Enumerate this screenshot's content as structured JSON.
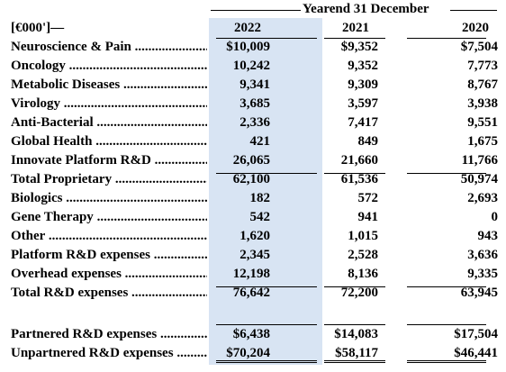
{
  "unit_label": "[€000']—",
  "group_header": "Yearend 31 December",
  "years": [
    "2022",
    "2021",
    "2020"
  ],
  "rows": [
    {
      "label": "Neuroscience & Pain",
      "v2022": "$10,009",
      "v2021": "$9,352",
      "v2020": "$7,504"
    },
    {
      "label": "Oncology",
      "v2022": "10,242",
      "v2021": "9,352",
      "v2020": "7,773"
    },
    {
      "label": "Metabolic Diseases",
      "v2022": "9,341",
      "v2021": "9,309",
      "v2020": "8,767"
    },
    {
      "label": "Virology",
      "v2022": "3,685",
      "v2021": "3,597",
      "v2020": "3,938"
    },
    {
      "label": "Anti-Bacterial",
      "v2022": "2,336",
      "v2021": "7,417",
      "v2020": "9,551"
    },
    {
      "label": "Global Health",
      "v2022": "421",
      "v2021": "849",
      "v2020": "1,675"
    },
    {
      "label": "Innovate Platform R&D",
      "v2022": "26,065",
      "v2021": "21,660",
      "v2020": "11,766"
    },
    {
      "label": "Total Proprietary",
      "v2022": "62,100",
      "v2021": "61,536",
      "v2020": "50,974"
    },
    {
      "label": "Biologics",
      "v2022": "182",
      "v2021": "572",
      "v2020": "2,693"
    },
    {
      "label": "Gene Therapy",
      "v2022": "542",
      "v2021": "941",
      "v2020": "0"
    },
    {
      "label": "Other",
      "v2022": "1,620",
      "v2021": "1,015",
      "v2020": "943"
    },
    {
      "label": "Platform R&D expenses",
      "v2022": "2,345",
      "v2021": "2,528",
      "v2020": "3,636"
    },
    {
      "label": "Overhead expenses",
      "v2022": "12,198",
      "v2021": "8,136",
      "v2020": "9,335"
    },
    {
      "label": "Total R&D expenses",
      "v2022": "76,642",
      "v2021": "72,200",
      "v2020": "63,945"
    }
  ],
  "rows_bottom": [
    {
      "label": "Partnered R&D expenses",
      "v2022": "$6,438",
      "v2021": "$14,083",
      "v2020": "$17,504"
    },
    {
      "label": "Unpartnered R&D expenses",
      "v2022": "$70,204",
      "v2021": "$58,117",
      "v2020": "$46,441"
    }
  ]
}
